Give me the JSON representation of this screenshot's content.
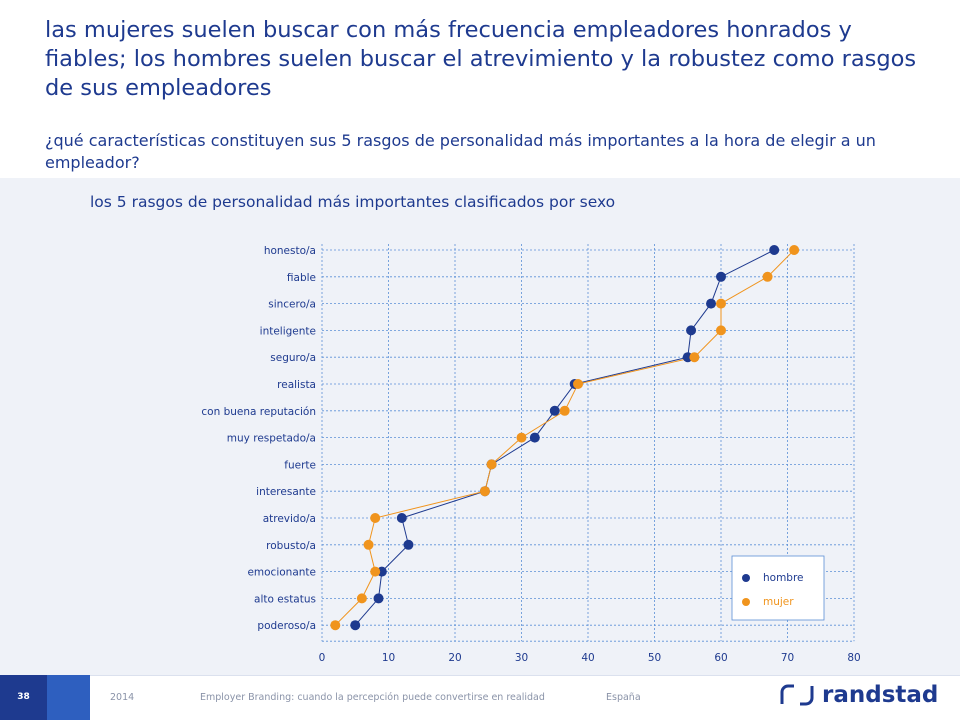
{
  "header": {
    "title": "las mujeres suelen buscar con más frecuencia empleadores honrados y fiables; los hombres suelen buscar el atrevimiento y la robustez como rasgos de sus empleadores",
    "question": "¿qué características constituyen sus 5 rasgos de personalidad más importantes a la hora de elegir a un empleador?"
  },
  "subtitle": "los 5 rasgos de personalidad más importantes clasificados por sexo",
  "colors": {
    "hombre": "#1e3a8f",
    "mujer": "#f0941d",
    "grid": "#5b8fd6",
    "text": "#1e3a8f"
  },
  "chart_data": {
    "type": "scatter",
    "title": "los 5 rasgos de personalidad más importantes clasificados por sexo",
    "categories": [
      "honesto/a",
      "fiable",
      "sincero/a",
      "inteligente",
      "seguro/a",
      "realista",
      "con buena reputación",
      "muy respetado/a",
      "fuerte",
      "interesante",
      "atrevido/a",
      "robusto/a",
      "emocionante",
      "alto estatus",
      "poderoso/a"
    ],
    "series": [
      {
        "name": "hombre",
        "values": [
          68,
          60,
          58.5,
          55.5,
          55,
          38,
          35,
          32,
          25.5,
          24.5,
          12,
          13,
          9,
          8.5,
          5
        ]
      },
      {
        "name": "mujer",
        "values": [
          71,
          67,
          60,
          60,
          56,
          38.5,
          36.5,
          30,
          25.5,
          24.5,
          8,
          7,
          8,
          6,
          2
        ]
      }
    ],
    "xlim": [
      0,
      80
    ],
    "xticks": [
      "0",
      "10",
      "20",
      "30",
      "40",
      "50",
      "60",
      "70",
      "80"
    ],
    "grid": true,
    "legend_position": "bottom-right"
  },
  "legend": {
    "hombre": "hombre",
    "mujer": "mujer"
  },
  "footer": {
    "page": "38",
    "year": "2014",
    "report": "Employer Branding: cuando la percepción puede convertirse en realidad",
    "country": "España",
    "brand": "randstad"
  }
}
